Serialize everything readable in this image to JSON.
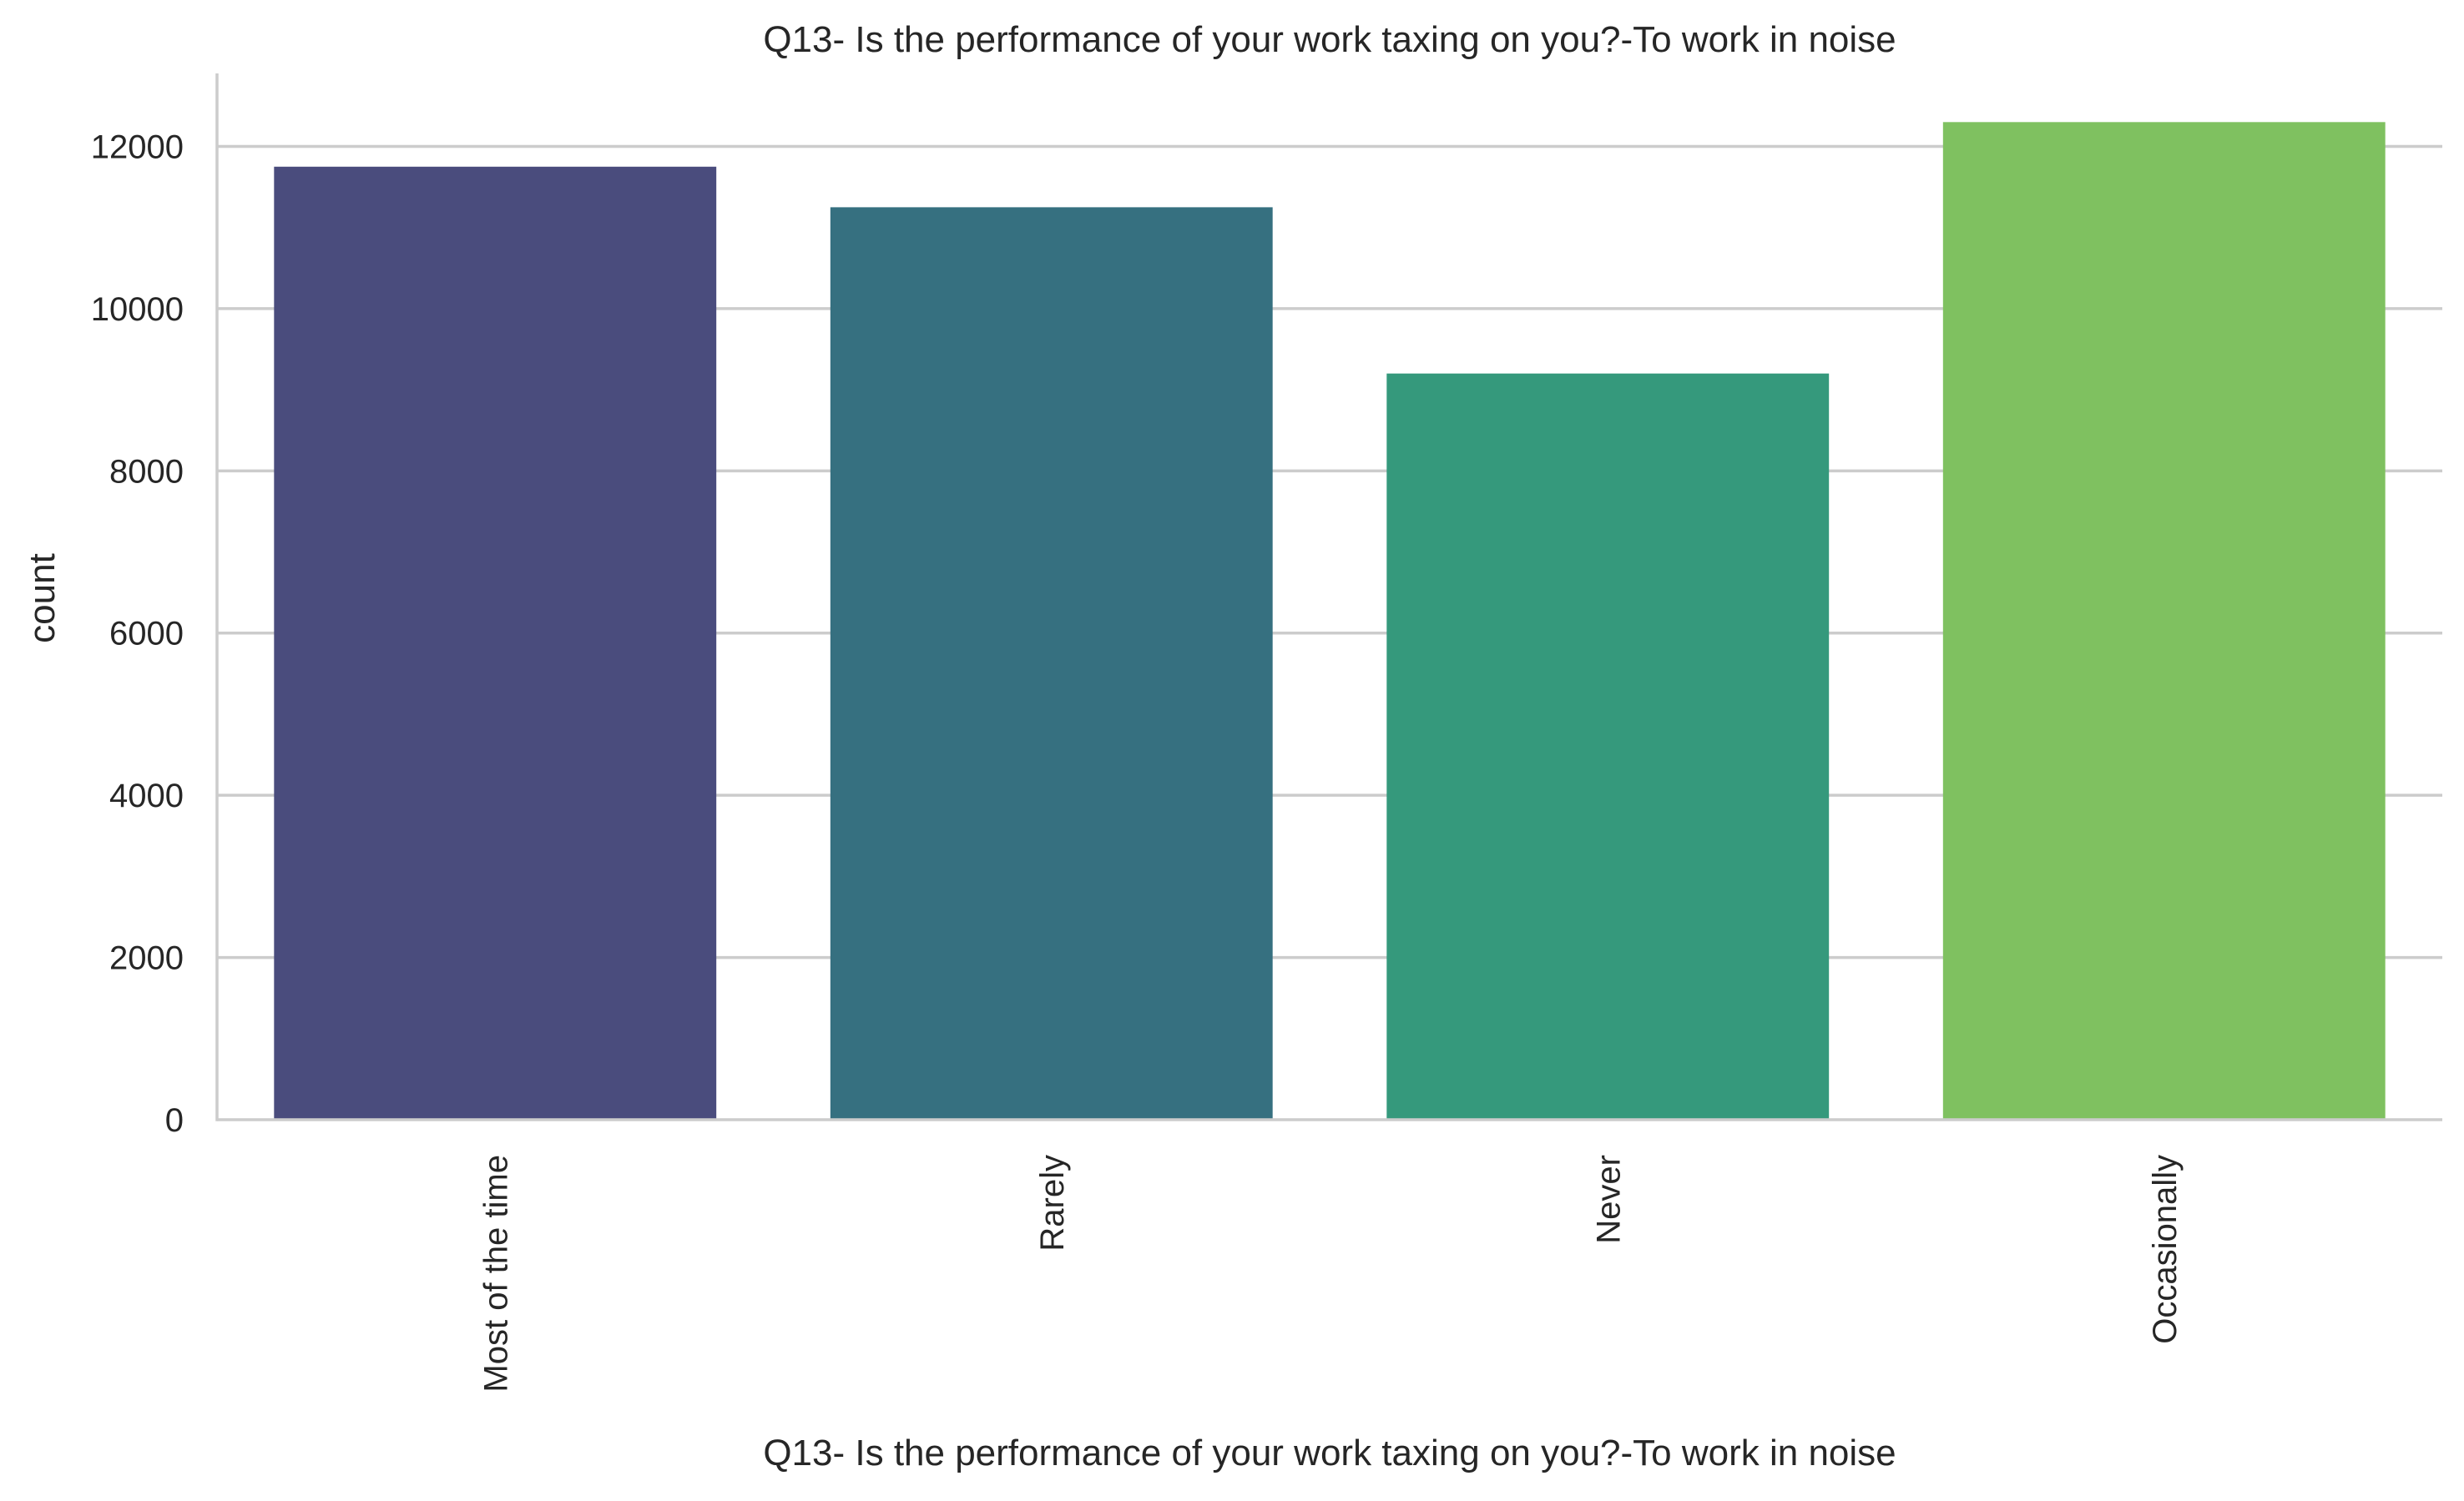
{
  "chart_data": {
    "type": "bar",
    "title": "Q13- Is the performance of your work taxing on you?-To work in noise",
    "xlabel": "Q13- Is the performance of your work taxing on you?-To work in noise",
    "ylabel": "count",
    "categories": [
      "Most of the time",
      "Rarely",
      "Never",
      "Occasionally"
    ],
    "values": [
      11750,
      11250,
      9200,
      12300
    ],
    "colors": [
      "#4a4c7d",
      "#367080",
      "#35997c",
      "#7fc160"
    ],
    "ylim": [
      0,
      12900
    ],
    "yticks": [
      0,
      2000,
      4000,
      6000,
      8000,
      10000,
      12000
    ],
    "ytick_labels": [
      "0",
      "2000",
      "4000",
      "6000",
      "8000",
      "10000",
      "12000"
    ],
    "grid": "horizontal",
    "xtick_rotation": "vertical"
  }
}
